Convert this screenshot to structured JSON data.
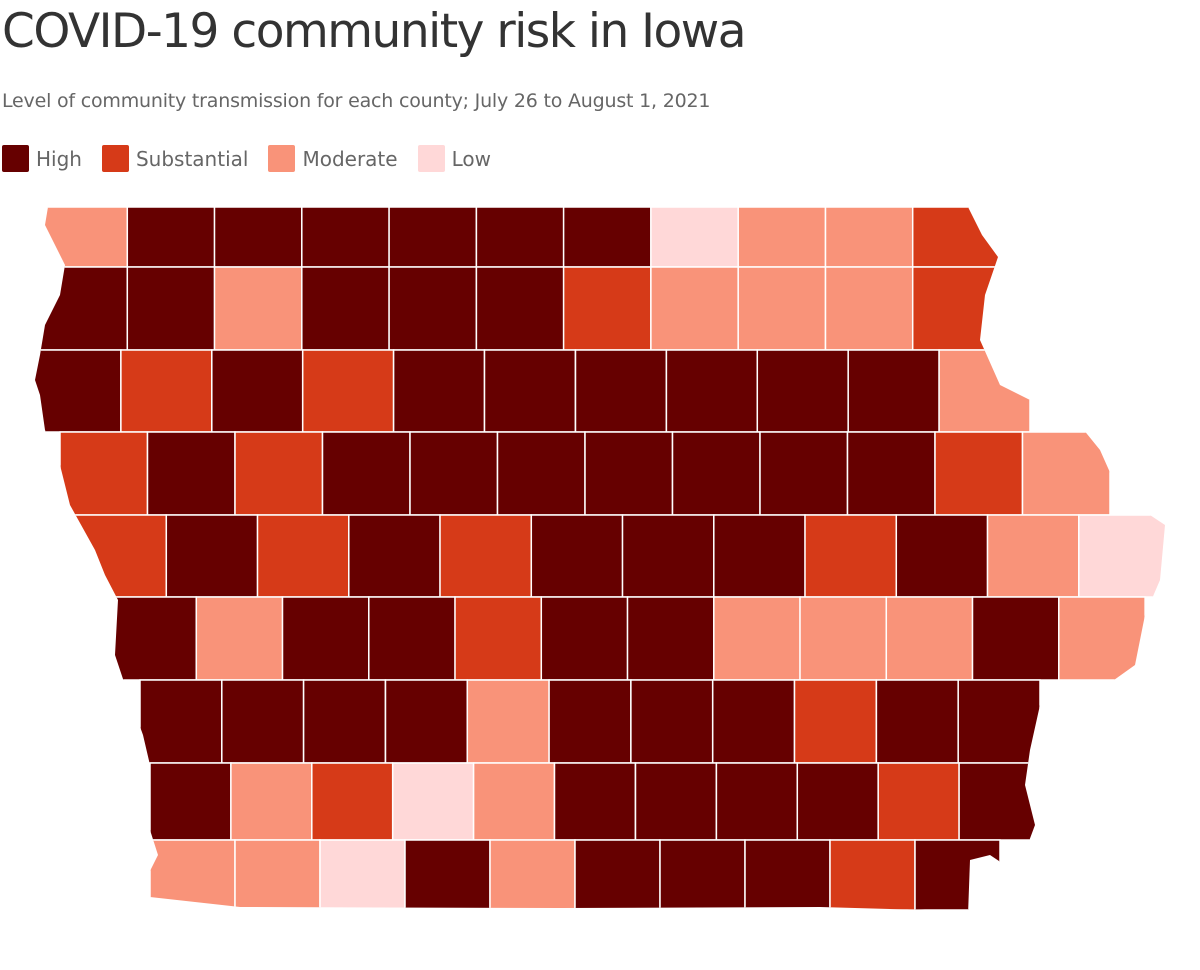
{
  "title": "COVID-19 community risk in Iowa",
  "subtitle": "Level of community transmission for each county; July 26 to August 1, 2021",
  "legend": [
    {
      "key": "high",
      "label": "High",
      "color": "#660000"
    },
    {
      "key": "substantial",
      "label": "Substantial",
      "color": "#d63a18"
    },
    {
      "key": "moderate",
      "label": "Moderate",
      "color": "#f99379"
    },
    {
      "key": "low",
      "label": "Low",
      "color": "#ffd8d8"
    }
  ],
  "county_levels": [
    [
      "moderate",
      "high",
      "high",
      "high",
      "high",
      "high",
      "high",
      "low",
      "moderate",
      "moderate",
      "substantial"
    ],
    [
      "high",
      "high",
      "moderate",
      "high",
      "high",
      "high",
      "substantial",
      "moderate",
      "moderate",
      "moderate",
      "substantial"
    ],
    [
      "high",
      "substantial",
      "high",
      "substantial",
      "high",
      "high",
      "high",
      "high",
      "high",
      "high",
      "moderate"
    ],
    [
      "substantial",
      "high",
      "substantial",
      "high",
      "high",
      "high",
      "high",
      "high",
      "high",
      "high",
      "substantial",
      "moderate"
    ],
    [
      "substantial",
      "high",
      "substantial",
      "high",
      "substantial",
      "high",
      "high",
      "high",
      "substantial",
      "high",
      "moderate",
      "low"
    ],
    [
      "high",
      "moderate",
      "high",
      "high",
      "substantial",
      "high",
      "high",
      "moderate",
      "moderate",
      "moderate",
      "high",
      "moderate"
    ],
    [
      "high",
      "high",
      "high",
      "high",
      "moderate",
      "high",
      "high",
      "high",
      "substantial",
      "high",
      "high"
    ],
    [
      "high",
      "moderate",
      "substantial",
      "low",
      "moderate",
      "high",
      "high",
      "high",
      "high",
      "substantial",
      "high"
    ],
    [
      "moderate",
      "moderate",
      "low",
      "high",
      "moderate",
      "high",
      "high",
      "high",
      "substantial",
      "high"
    ]
  ]
}
